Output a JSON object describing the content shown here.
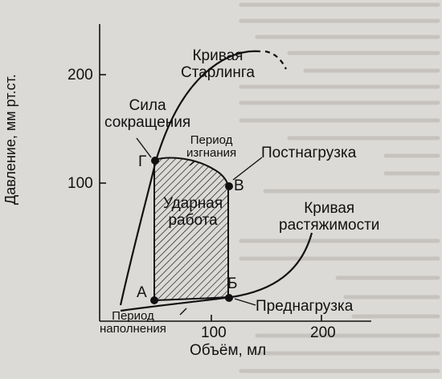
{
  "axes": {
    "y_label": "Давление, мм рт.ст.",
    "x_label": "Объём, мл",
    "y_ticks": [
      "100",
      "200"
    ],
    "x_ticks": [
      "100",
      "200"
    ]
  },
  "points": {
    "a": "А",
    "b": "Б",
    "v": "В",
    "g": "Г"
  },
  "labels": {
    "starling_curve": "Кривая\nСтарлинга",
    "contraction_force": "Сила\nсокращения",
    "ejection_period": "Период\nизгнания",
    "afterload": "Постнагрузка",
    "stroke_work": "Ударная\nработа",
    "compliance_curve": "Кривая\nрастяжимости",
    "filling_period": "Период\nнаполнения",
    "preload": "Преднагрузка"
  },
  "colors": {
    "ink": "#111111",
    "paper": "#dcdad7"
  }
}
